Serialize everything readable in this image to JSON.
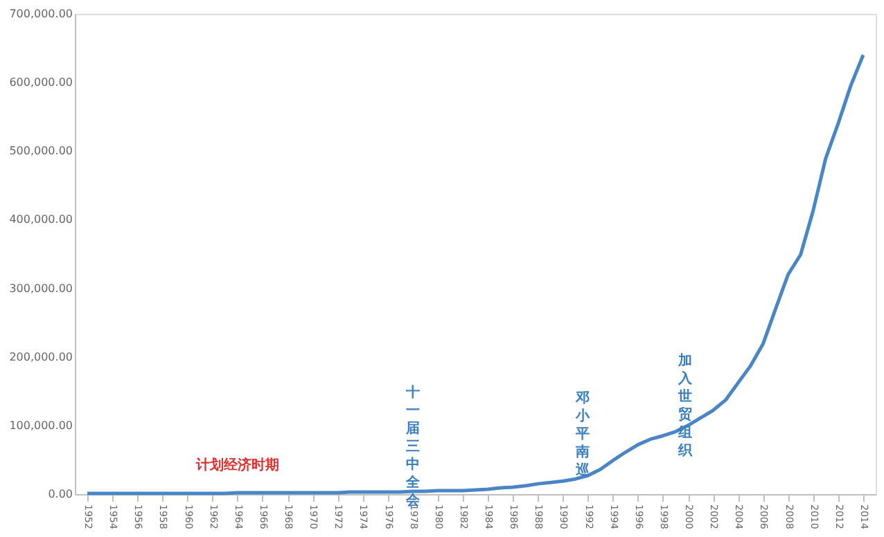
{
  "chart_data": {
    "type": "line",
    "x": [
      1952,
      1953,
      1954,
      1955,
      1956,
      1957,
      1958,
      1959,
      1960,
      1961,
      1962,
      1963,
      1964,
      1965,
      1966,
      1967,
      1968,
      1969,
      1970,
      1971,
      1972,
      1973,
      1974,
      1975,
      1976,
      1977,
      1978,
      1979,
      1980,
      1981,
      1982,
      1983,
      1984,
      1985,
      1986,
      1987,
      1988,
      1989,
      1990,
      1991,
      1992,
      1993,
      1994,
      1995,
      1996,
      1997,
      1998,
      1999,
      2000,
      2001,
      2002,
      2003,
      2004,
      2005,
      2006,
      2007,
      2008,
      2009,
      2010,
      2011,
      2012,
      2013,
      2014
    ],
    "series": [
      {
        "color": "#4a86c6",
        "values": [
          1000,
          1000,
          1000,
          1000,
          1000,
          1000,
          1000,
          1000,
          1000,
          1000,
          1000,
          1000,
          2000,
          2000,
          2000,
          2000,
          2000,
          2000,
          2000,
          2000,
          2000,
          3000,
          3000,
          3000,
          3000,
          3000,
          4000,
          4000,
          5000,
          5000,
          5000,
          6000,
          7000,
          9000,
          10000,
          12000,
          15000,
          17000,
          19000,
          22000,
          27000,
          36000,
          49000,
          61000,
          72000,
          80000,
          85000,
          91000,
          100000,
          111000,
          122000,
          137000,
          162000,
          187000,
          219000,
          270000,
          320000,
          349000,
          413000,
          489000,
          540000,
          595000,
          640000
        ]
      }
    ],
    "xlim": [
      1951,
      2015
    ],
    "xticks": [
      1952,
      1954,
      1956,
      1958,
      1960,
      1962,
      1964,
      1966,
      1968,
      1970,
      1972,
      1974,
      1976,
      1978,
      1980,
      1982,
      1984,
      1986,
      1988,
      1990,
      1992,
      1994,
      1996,
      1998,
      2000,
      2002,
      2004,
      2006,
      2008,
      2010,
      2012,
      2014
    ],
    "ylim": [
      0,
      700000
    ],
    "yticks": [
      {
        "value": 0,
        "label": "0.00"
      },
      {
        "value": 100000,
        "label": "100,000.00"
      },
      {
        "value": 200000,
        "label": "200,000.00"
      },
      {
        "value": 300000,
        "label": "300,000.00"
      },
      {
        "value": 400000,
        "label": "400,000.00"
      },
      {
        "value": 500000,
        "label": "500,000.00"
      },
      {
        "value": 600000,
        "label": "600,000.00"
      },
      {
        "value": 700000,
        "label": "700,000.00"
      }
    ],
    "grid": false,
    "marker": "none",
    "line_style": "solid",
    "annotations": [
      "计划经济时期",
      "十一届三中全会",
      "邓小平南巡",
      "加入世贸组织"
    ]
  }
}
